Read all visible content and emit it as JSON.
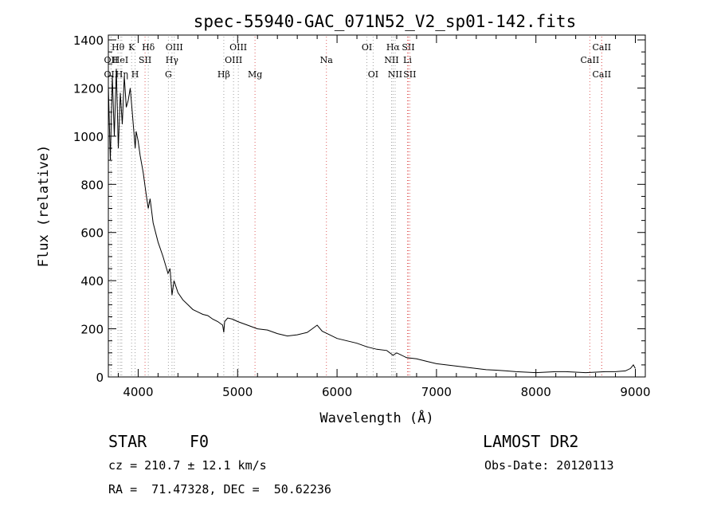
{
  "chart_data": {
    "type": "line",
    "title": "spec-55940-GAC_071N52_V2_sp01-142.fits",
    "xlabel": "Wavelength (Å)",
    "ylabel": "Flux (relative)",
    "xlim": [
      3700,
      9100
    ],
    "ylim": [
      0,
      1420
    ],
    "xticks": [
      4000,
      5000,
      6000,
      7000,
      8000,
      9000
    ],
    "yticks": [
      0,
      200,
      400,
      600,
      800,
      1000,
      1200,
      1400
    ],
    "grid": false,
    "series": [
      {
        "x": [
          3700,
          3720,
          3740,
          3760,
          3780,
          3800,
          3820,
          3840,
          3860,
          3880,
          3900,
          3920,
          3940,
          3960,
          3970,
          3980,
          4000,
          4020,
          4050,
          4080,
          4101,
          4120,
          4150,
          4200,
          4250,
          4300,
          4320,
          4340,
          4360,
          4400,
          4450,
          4500,
          4550,
          4600,
          4650,
          4700,
          4750,
          4800,
          4850,
          4861,
          4870,
          4900,
          4950,
          5000,
          5100,
          5200,
          5300,
          5400,
          5500,
          5600,
          5700,
          5750,
          5800,
          5850,
          5900,
          6000,
          6100,
          6200,
          6300,
          6400,
          6500,
          6563,
          6600,
          6700,
          6800,
          6900,
          7000,
          7100,
          7200,
          7300,
          7400,
          7500,
          7600,
          7700,
          7800,
          7900,
          8000,
          8100,
          8200,
          8300,
          8400,
          8500,
          8600,
          8700,
          8800,
          8900,
          8950,
          8980,
          9000
        ],
        "y": [
          1210,
          900,
          1250,
          1000,
          1280,
          950,
          1180,
          1050,
          1250,
          1120,
          1150,
          1200,
          1100,
          1000,
          950,
          1020,
          980,
          920,
          850,
          760,
          700,
          740,
          640,
          560,
          500,
          430,
          450,
          340,
          400,
          350,
          320,
          300,
          280,
          270,
          260,
          255,
          240,
          230,
          215,
          185,
          230,
          245,
          240,
          230,
          215,
          200,
          195,
          180,
          170,
          175,
          185,
          200,
          215,
          190,
          180,
          160,
          150,
          140,
          125,
          115,
          110,
          90,
          100,
          80,
          75,
          65,
          55,
          50,
          45,
          40,
          35,
          30,
          28,
          25,
          22,
          20,
          18,
          20,
          22,
          22,
          20,
          18,
          20,
          22,
          22,
          25,
          35,
          50,
          35
        ]
      }
    ],
    "lines": [
      {
        "label": "OII",
        "wl": 3727,
        "row": 2,
        "color": "#a0a0a0"
      },
      {
        "label": "Hθ",
        "wl": 3797,
        "row": 1,
        "color": "#a0a0a0"
      },
      {
        "label": "HeI",
        "wl": 3820,
        "row": 2,
        "color": "#a0a0a0"
      },
      {
        "label": "Hη",
        "wl": 3835,
        "row": 3,
        "color": "#a0a0a0"
      },
      {
        "label": "OII",
        "wl": 3727,
        "row": 3,
        "color": "#a0a0a0"
      },
      {
        "label": "K",
        "wl": 3934,
        "row": 1,
        "color": "#a0a0a0"
      },
      {
        "label": "SII",
        "wl": 4069,
        "row": 2,
        "color": "#e06060"
      },
      {
        "label": "H",
        "wl": 3969,
        "row": 3,
        "color": "#a0a0a0"
      },
      {
        "label": "Hδ",
        "wl": 4102,
        "row": 1,
        "color": "#a0a0a0"
      },
      {
        "label": "OIII",
        "wl": 4363,
        "row": 1,
        "color": "#a0a0a0"
      },
      {
        "label": "Hγ",
        "wl": 4340,
        "row": 2,
        "color": "#a0a0a0"
      },
      {
        "label": "G",
        "wl": 4304,
        "row": 3,
        "color": "#a0a0a0"
      },
      {
        "label": "Hβ",
        "wl": 4861,
        "row": 3,
        "color": "#a0a0a0"
      },
      {
        "label": "OIII",
        "wl": 5007,
        "row": 1,
        "color": "#a0a0a0"
      },
      {
        "label": "OIII",
        "wl": 4959,
        "row": 2,
        "color": "#a0a0a0"
      },
      {
        "label": "Mg",
        "wl": 5175,
        "row": 3,
        "color": "#e06060"
      },
      {
        "label": "Na",
        "wl": 5893,
        "row": 2,
        "color": "#e06060"
      },
      {
        "label": "OI",
        "wl": 6300,
        "row": 1,
        "color": "#a0a0a0"
      },
      {
        "label": "OI",
        "wl": 6363,
        "row": 3,
        "color": "#a0a0a0"
      },
      {
        "label": "Hα",
        "wl": 6563,
        "row": 1,
        "color": "#a0a0a0"
      },
      {
        "label": "SII",
        "wl": 6716,
        "row": 1,
        "color": "#e06060"
      },
      {
        "label": "NII",
        "wl": 6548,
        "row": 2,
        "color": "#a0a0a0"
      },
      {
        "label": "Li",
        "wl": 6708,
        "row": 2,
        "color": "#e06060"
      },
      {
        "label": "NII",
        "wl": 6584,
        "row": 3,
        "color": "#a0a0a0"
      },
      {
        "label": "SII",
        "wl": 6731,
        "row": 3,
        "color": "#e06060"
      },
      {
        "label": "CaII",
        "wl": 8662,
        "row": 1,
        "color": "#e06060"
      },
      {
        "label": "CaII",
        "wl": 8542,
        "row": 2,
        "color": "#e06060"
      },
      {
        "label": "CaII",
        "wl": 8662,
        "row": 3,
        "color": "#e06060"
      }
    ]
  },
  "info": {
    "class_label": "STAR",
    "subclass": "F0",
    "survey": "LAMOST DR2",
    "velocity": "cz = 210.7 ± 12.1 km/s",
    "obs_date": "Obs-Date: 20120113",
    "coords": "RA =  71.47328, DEC =  50.62236"
  }
}
